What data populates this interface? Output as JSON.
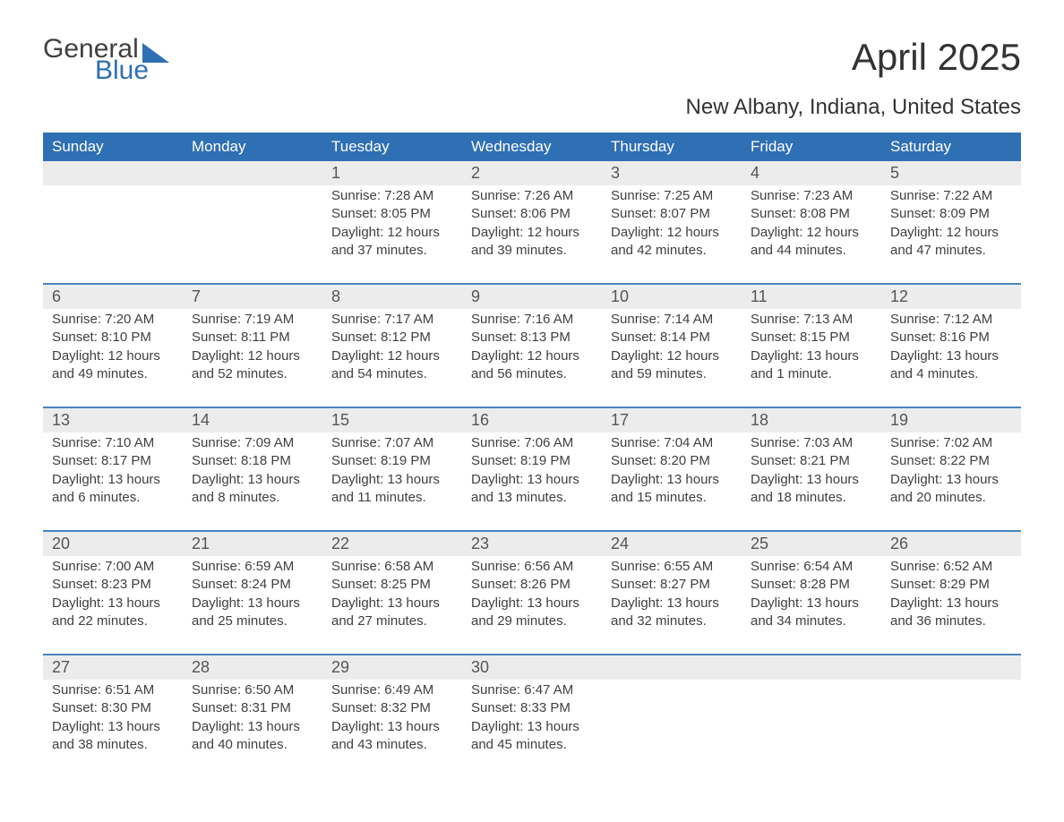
{
  "brand": {
    "text1": "General",
    "text2": "Blue",
    "sail_color": "#2f6fb3"
  },
  "title": "April 2025",
  "subtitle": "New Albany, Indiana, United States",
  "colors": {
    "header_bg": "#2f6fb3",
    "header_text": "#ffffff",
    "week_border": "#4a84bf",
    "daynum_bg": "#ececec",
    "body_text": "#404040"
  },
  "day_headers": [
    "Sunday",
    "Monday",
    "Tuesday",
    "Wednesday",
    "Thursday",
    "Friday",
    "Saturday"
  ],
  "weeks": [
    [
      null,
      null,
      {
        "n": "1",
        "sunrise": "7:28 AM",
        "sunset": "8:05 PM",
        "dl": "12 hours and 37 minutes."
      },
      {
        "n": "2",
        "sunrise": "7:26 AM",
        "sunset": "8:06 PM",
        "dl": "12 hours and 39 minutes."
      },
      {
        "n": "3",
        "sunrise": "7:25 AM",
        "sunset": "8:07 PM",
        "dl": "12 hours and 42 minutes."
      },
      {
        "n": "4",
        "sunrise": "7:23 AM",
        "sunset": "8:08 PM",
        "dl": "12 hours and 44 minutes."
      },
      {
        "n": "5",
        "sunrise": "7:22 AM",
        "sunset": "8:09 PM",
        "dl": "12 hours and 47 minutes."
      }
    ],
    [
      {
        "n": "6",
        "sunrise": "7:20 AM",
        "sunset": "8:10 PM",
        "dl": "12 hours and 49 minutes."
      },
      {
        "n": "7",
        "sunrise": "7:19 AM",
        "sunset": "8:11 PM",
        "dl": "12 hours and 52 minutes."
      },
      {
        "n": "8",
        "sunrise": "7:17 AM",
        "sunset": "8:12 PM",
        "dl": "12 hours and 54 minutes."
      },
      {
        "n": "9",
        "sunrise": "7:16 AM",
        "sunset": "8:13 PM",
        "dl": "12 hours and 56 minutes."
      },
      {
        "n": "10",
        "sunrise": "7:14 AM",
        "sunset": "8:14 PM",
        "dl": "12 hours and 59 minutes."
      },
      {
        "n": "11",
        "sunrise": "7:13 AM",
        "sunset": "8:15 PM",
        "dl": "13 hours and 1 minute."
      },
      {
        "n": "12",
        "sunrise": "7:12 AM",
        "sunset": "8:16 PM",
        "dl": "13 hours and 4 minutes."
      }
    ],
    [
      {
        "n": "13",
        "sunrise": "7:10 AM",
        "sunset": "8:17 PM",
        "dl": "13 hours and 6 minutes."
      },
      {
        "n": "14",
        "sunrise": "7:09 AM",
        "sunset": "8:18 PM",
        "dl": "13 hours and 8 minutes."
      },
      {
        "n": "15",
        "sunrise": "7:07 AM",
        "sunset": "8:19 PM",
        "dl": "13 hours and 11 minutes."
      },
      {
        "n": "16",
        "sunrise": "7:06 AM",
        "sunset": "8:19 PM",
        "dl": "13 hours and 13 minutes."
      },
      {
        "n": "17",
        "sunrise": "7:04 AM",
        "sunset": "8:20 PM",
        "dl": "13 hours and 15 minutes."
      },
      {
        "n": "18",
        "sunrise": "7:03 AM",
        "sunset": "8:21 PM",
        "dl": "13 hours and 18 minutes."
      },
      {
        "n": "19",
        "sunrise": "7:02 AM",
        "sunset": "8:22 PM",
        "dl": "13 hours and 20 minutes."
      }
    ],
    [
      {
        "n": "20",
        "sunrise": "7:00 AM",
        "sunset": "8:23 PM",
        "dl": "13 hours and 22 minutes."
      },
      {
        "n": "21",
        "sunrise": "6:59 AM",
        "sunset": "8:24 PM",
        "dl": "13 hours and 25 minutes."
      },
      {
        "n": "22",
        "sunrise": "6:58 AM",
        "sunset": "8:25 PM",
        "dl": "13 hours and 27 minutes."
      },
      {
        "n": "23",
        "sunrise": "6:56 AM",
        "sunset": "8:26 PM",
        "dl": "13 hours and 29 minutes."
      },
      {
        "n": "24",
        "sunrise": "6:55 AM",
        "sunset": "8:27 PM",
        "dl": "13 hours and 32 minutes."
      },
      {
        "n": "25",
        "sunrise": "6:54 AM",
        "sunset": "8:28 PM",
        "dl": "13 hours and 34 minutes."
      },
      {
        "n": "26",
        "sunrise": "6:52 AM",
        "sunset": "8:29 PM",
        "dl": "13 hours and 36 minutes."
      }
    ],
    [
      {
        "n": "27",
        "sunrise": "6:51 AM",
        "sunset": "8:30 PM",
        "dl": "13 hours and 38 minutes."
      },
      {
        "n": "28",
        "sunrise": "6:50 AM",
        "sunset": "8:31 PM",
        "dl": "13 hours and 40 minutes."
      },
      {
        "n": "29",
        "sunrise": "6:49 AM",
        "sunset": "8:32 PM",
        "dl": "13 hours and 43 minutes."
      },
      {
        "n": "30",
        "sunrise": "6:47 AM",
        "sunset": "8:33 PM",
        "dl": "13 hours and 45 minutes."
      },
      null,
      null,
      null
    ]
  ],
  "labels": {
    "sunrise": "Sunrise: ",
    "sunset": "Sunset: ",
    "daylight": "Daylight: "
  }
}
